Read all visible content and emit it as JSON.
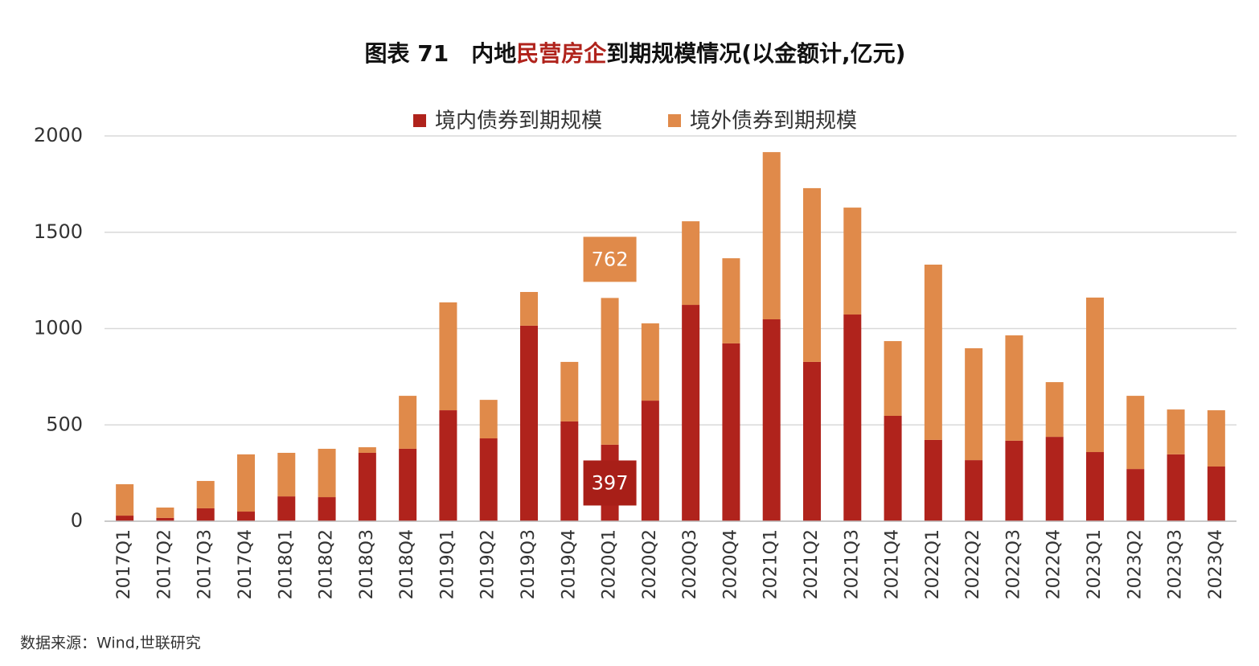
{
  "chart_data": {
    "type": "stacked-bar",
    "title": [
      {
        "text": "图表 71　内地",
        "color": "#111111"
      },
      {
        "text": "民营房企",
        "color": "#b0231c"
      },
      {
        "text": "到期规模情况(以金额计,亿元)",
        "color": "#111111"
      }
    ],
    "source": "数据来源：Wind,世联研究",
    "categories": [
      "2017Q1",
      "2017Q2",
      "2017Q3",
      "2017Q4",
      "2018Q1",
      "2018Q2",
      "2018Q3",
      "2018Q4",
      "2019Q1",
      "2019Q2",
      "2019Q3",
      "2019Q4",
      "2020Q1",
      "2020Q2",
      "2020Q3",
      "2020Q4",
      "2021Q1",
      "2021Q2",
      "2021Q3",
      "2021Q4",
      "2022Q1",
      "2022Q2",
      "2022Q3",
      "2022Q4",
      "2023Q1",
      "2023Q2",
      "2023Q3",
      "2023Q4"
    ],
    "series": [
      {
        "name": "境内债券到期规模",
        "color": "#b0231c",
        "values": [
          29,
          17,
          67,
          50,
          129,
          125,
          355,
          376,
          576,
          430,
          1015,
          518,
          397,
          626,
          1123,
          923,
          1048,
          827,
          1073,
          547,
          422,
          317,
          418,
          438,
          359,
          271,
          347,
          284
        ],
        "value_labels": [
          null,
          null,
          null,
          null,
          null,
          null,
          null,
          null,
          null,
          null,
          null,
          null,
          397,
          null,
          null,
          null,
          null,
          null,
          null,
          null,
          null,
          null,
          null,
          null,
          null,
          null,
          null,
          null
        ]
      },
      {
        "name": "境外债券到期规模",
        "color": "#e08a4a",
        "values": [
          163,
          54,
          142,
          297,
          226,
          251,
          29,
          275,
          560,
          200,
          175,
          309,
          762,
          401,
          434,
          442,
          868,
          902,
          555,
          388,
          910,
          581,
          547,
          284,
          802,
          380,
          233,
          292
        ],
        "value_labels": [
          null,
          null,
          null,
          null,
          null,
          null,
          null,
          null,
          null,
          null,
          null,
          null,
          762,
          null,
          null,
          null,
          null,
          null,
          null,
          null,
          null,
          null,
          null,
          null,
          null,
          null,
          null,
          null
        ]
      }
    ],
    "ylim": [
      0,
      2000
    ],
    "yticks": [
      0,
      500,
      1000,
      1500,
      2000
    ],
    "grid": true
  }
}
